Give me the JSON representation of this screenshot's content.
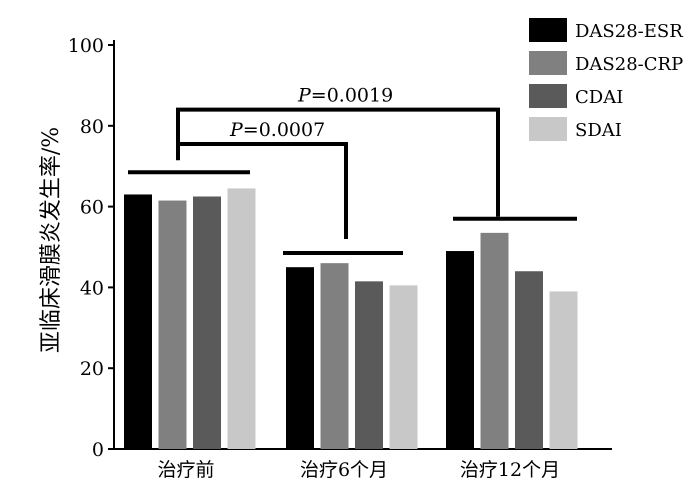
{
  "chart_data": {
    "type": "bar",
    "categories": [
      "治疗前",
      "治疗6个月",
      "治疗12个月"
    ],
    "series": [
      {
        "name": "DAS28-ESR",
        "color": "#000000",
        "values": [
          63,
          45,
          49
        ]
      },
      {
        "name": "DAS28-CRP",
        "color": "#808080",
        "values": [
          61.5,
          46,
          53.5
        ]
      },
      {
        "name": "CDAI",
        "color": "#5a5a5a",
        "values": [
          62.5,
          41.5,
          44
        ]
      },
      {
        "name": "SDAI",
        "color": "#c8c8c8",
        "values": [
          64.5,
          40.5,
          39
        ]
      }
    ],
    "group_means": [
      68.5,
      48.5,
      57
    ],
    "ylabel": "亚临床滑膜炎发生率/%",
    "ylim": [
      0,
      100
    ],
    "yticks": [
      0,
      20,
      40,
      60,
      80,
      100
    ],
    "legend_position": "top-right",
    "annotations": [
      {
        "from": "治疗前",
        "to": "治疗6个月",
        "label_prefix": "P",
        "label_rest": "=0.0007"
      },
      {
        "from": "治疗前",
        "to": "治疗12个月",
        "label_prefix": "P",
        "label_rest": "=0.0019"
      }
    ]
  }
}
